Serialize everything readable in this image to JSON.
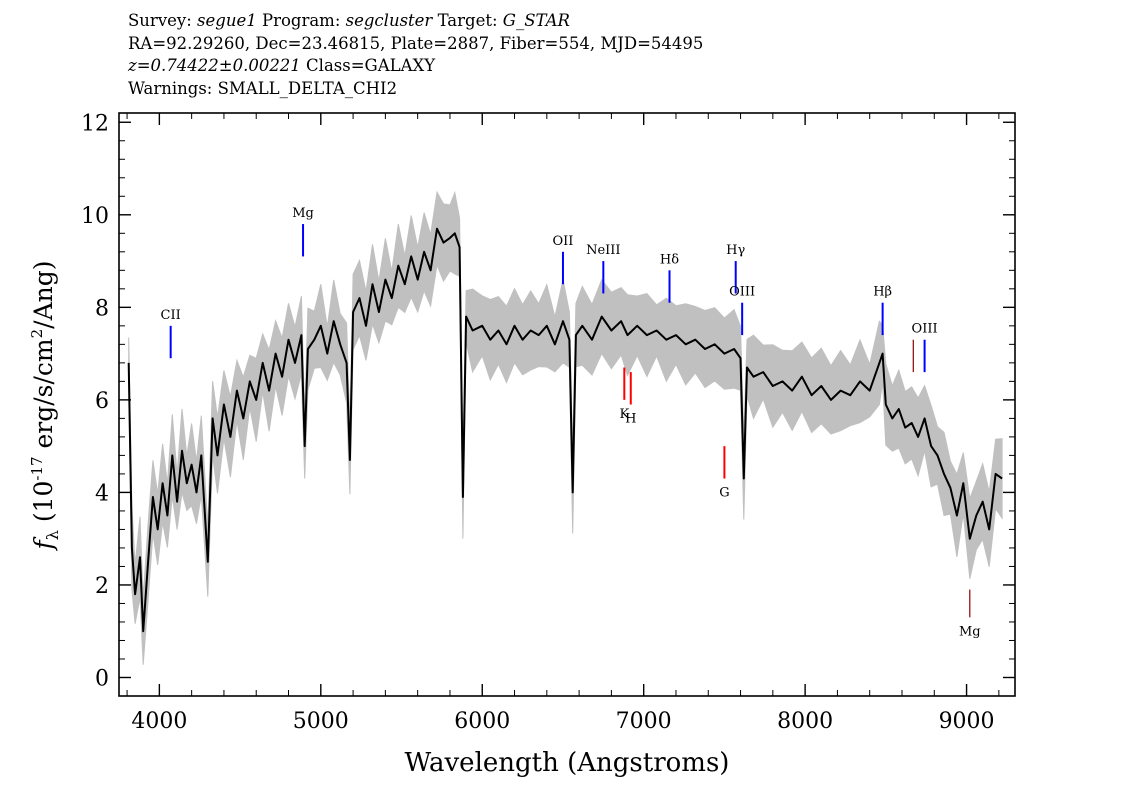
{
  "header": {
    "line1": {
      "survey_label": "Survey: ",
      "survey": "segue1",
      "program_label": " Program: ",
      "program": "segcluster",
      "target_label": " Target: ",
      "target": "G_STAR"
    },
    "line2": "RA=92.29260, Dec=23.46815, Plate=2887, Fiber=554, MJD=54495",
    "line3": {
      "redshift": "z=0.74422±0.00221",
      "class": " Class=GALAXY"
    },
    "line4": "Warnings: SMALL_DELTA_CHI2"
  },
  "chart_data": {
    "type": "line",
    "xlabel": "Wavelength (Angstroms)",
    "ylabel": "f_λ (10^-17 erg/s/cm^2/Ang)",
    "xlim": [
      3750,
      9300
    ],
    "ylim": [
      -0.4,
      12.2
    ],
    "xticks": [
      4000,
      5000,
      6000,
      7000,
      8000,
      9000
    ],
    "yticks": [
      0,
      2,
      4,
      6,
      8,
      10,
      12
    ],
    "colors": {
      "flux": "#000000",
      "noise": "#c0c0c0",
      "emission": "#0000ff",
      "absorption": "#ff0000",
      "sky": "#8b0000"
    },
    "series": [
      {
        "role": "flux",
        "x": [
          3810,
          3830,
          3850,
          3880,
          3900,
          3930,
          3960,
          3990,
          4020,
          4050,
          4080,
          4110,
          4140,
          4170,
          4200,
          4230,
          4260,
          4300,
          4330,
          4360,
          4400,
          4440,
          4480,
          4520,
          4560,
          4600,
          4640,
          4680,
          4720,
          4760,
          4800,
          4840,
          4880,
          4900,
          4920,
          4960,
          5000,
          5040,
          5080,
          5120,
          5160,
          5180,
          5200,
          5240,
          5280,
          5320,
          5360,
          5400,
          5440,
          5480,
          5520,
          5560,
          5600,
          5640,
          5680,
          5720,
          5760,
          5800,
          5830,
          5860,
          5880,
          5900,
          5940,
          6000,
          6050,
          6100,
          6150,
          6200,
          6250,
          6300,
          6350,
          6400,
          6450,
          6500,
          6540,
          6560,
          6580,
          6620,
          6680,
          6740,
          6800,
          6860,
          6900,
          6960,
          7020,
          7080,
          7140,
          7200,
          7260,
          7320,
          7380,
          7440,
          7500,
          7560,
          7600,
          7620,
          7640,
          7680,
          7740,
          7800,
          7860,
          7920,
          7980,
          8040,
          8100,
          8160,
          8220,
          8280,
          8340,
          8400,
          8460,
          8480,
          8500,
          8540,
          8580,
          8620,
          8660,
          8700,
          8740,
          8780,
          8820,
          8860,
          8900,
          8940,
          8980,
          9020,
          9060,
          9100,
          9140,
          9180,
          9220
        ],
        "y": [
          6.8,
          2.8,
          1.8,
          2.6,
          1.0,
          2.5,
          3.9,
          3.2,
          4.2,
          3.5,
          4.8,
          3.8,
          4.9,
          4.2,
          4.6,
          4.0,
          4.8,
          2.5,
          5.6,
          4.8,
          5.9,
          5.2,
          6.2,
          5.6,
          6.4,
          6.0,
          6.8,
          6.2,
          7.0,
          6.5,
          7.3,
          6.8,
          7.4,
          5.0,
          7.1,
          7.3,
          7.6,
          7.0,
          7.7,
          7.2,
          6.8,
          4.7,
          7.9,
          8.2,
          7.6,
          8.5,
          7.9,
          8.6,
          8.2,
          8.9,
          8.5,
          9.1,
          8.6,
          9.2,
          8.8,
          9.7,
          9.4,
          9.5,
          9.6,
          9.3,
          3.9,
          7.8,
          7.5,
          7.6,
          7.3,
          7.5,
          7.2,
          7.6,
          7.3,
          7.5,
          7.4,
          7.6,
          7.2,
          7.7,
          7.3,
          4.0,
          7.4,
          7.6,
          7.3,
          7.8,
          7.5,
          7.7,
          7.4,
          7.6,
          7.4,
          7.5,
          7.3,
          7.4,
          7.2,
          7.3,
          7.1,
          7.2,
          7.0,
          7.1,
          6.9,
          4.3,
          6.7,
          6.5,
          6.6,
          6.3,
          6.4,
          6.2,
          6.5,
          6.1,
          6.3,
          6.0,
          6.2,
          6.1,
          6.4,
          6.2,
          6.8,
          7.0,
          5.9,
          5.6,
          5.8,
          5.4,
          5.5,
          5.2,
          5.6,
          5.0,
          4.8,
          4.4,
          4.1,
          3.5,
          4.2,
          3.0,
          3.5,
          3.8,
          3.2,
          4.4,
          4.3
        ]
      }
    ],
    "line_markers": [
      {
        "label": "CII",
        "x": 4070,
        "y1": 6.9,
        "y2": 7.6,
        "kind": "emission",
        "label_pos": "above"
      },
      {
        "label": "Mg",
        "x": 4890,
        "y1": 9.1,
        "y2": 9.8,
        "kind": "emission",
        "label_pos": "above"
      },
      {
        "label": "OII",
        "x": 6500,
        "y1": 8.5,
        "y2": 9.2,
        "kind": "emission",
        "label_pos": "above"
      },
      {
        "label": "NeIII",
        "x": 6750,
        "y1": 8.3,
        "y2": 9.0,
        "kind": "emission",
        "label_pos": "above"
      },
      {
        "label": "Hδ",
        "x": 7160,
        "y1": 8.1,
        "y2": 8.8,
        "kind": "emission",
        "label_pos": "above"
      },
      {
        "label": "Hγ",
        "x": 7570,
        "y1": 8.3,
        "y2": 9.0,
        "kind": "emission",
        "label_pos": "above"
      },
      {
        "label": "OIII",
        "x": 7610,
        "y1": 7.4,
        "y2": 8.1,
        "kind": "emission",
        "label_pos": "above"
      },
      {
        "label": "Hβ",
        "x": 8480,
        "y1": 7.4,
        "y2": 8.1,
        "kind": "emission",
        "label_pos": "above"
      },
      {
        "label": "OIII",
        "x": 8740,
        "y1": 6.6,
        "y2": 7.3,
        "kind": "emission",
        "label_pos": "above"
      },
      {
        "label": "",
        "x": 8670,
        "y1": 6.6,
        "y2": 7.3,
        "kind": "sky",
        "label_pos": "none"
      },
      {
        "label": "K",
        "x": 6880,
        "y1": 6.0,
        "y2": 6.7,
        "kind": "absorption",
        "label_pos": "below"
      },
      {
        "label": "H",
        "x": 6920,
        "y1": 5.9,
        "y2": 6.6,
        "kind": "absorption",
        "label_pos": "below"
      },
      {
        "label": "G",
        "x": 7500,
        "y1": 4.3,
        "y2": 5.0,
        "kind": "absorption",
        "label_pos": "below"
      },
      {
        "label": "Mg",
        "x": 9020,
        "y1": 1.3,
        "y2": 1.9,
        "kind": "sky",
        "label_pos": "below"
      }
    ],
    "grid": false,
    "legend": "none"
  }
}
